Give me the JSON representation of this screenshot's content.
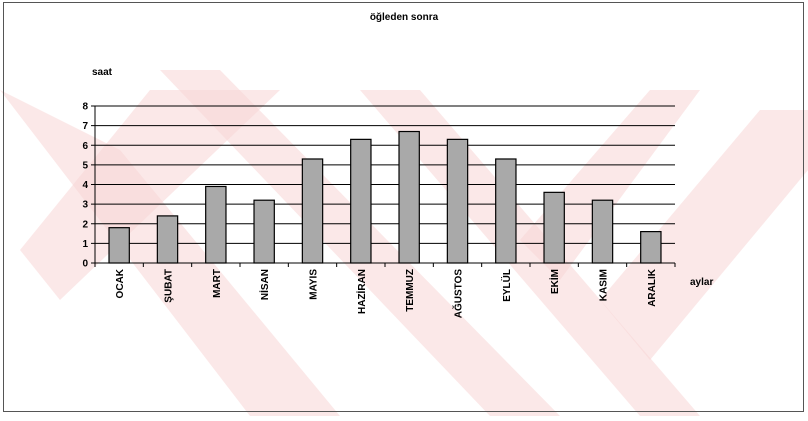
{
  "chart_data": {
    "type": "bar",
    "title": "öğleden sonra",
    "xlabel": "aylar",
    "ylabel": "saat",
    "categories": [
      "OCAK",
      "ŞUBAT",
      "MART",
      "NİSAN",
      "MAYIS",
      "HAZİRAN",
      "TEMMUZ",
      "AĞUSTOS",
      "EYLÜL",
      "EKİM",
      "KASIM",
      "ARALIK"
    ],
    "values": [
      1.8,
      2.4,
      3.9,
      3.2,
      5.3,
      6.3,
      6.7,
      6.3,
      5.3,
      3.6,
      3.2,
      1.6
    ],
    "ylim": [
      0,
      8
    ],
    "yticks": [
      0,
      1,
      2,
      3,
      4,
      5,
      6,
      7,
      8
    ],
    "grid": true,
    "bar_color": "#a9a9a9",
    "watermark_color": "#f7d6d6",
    "legend": "none"
  }
}
